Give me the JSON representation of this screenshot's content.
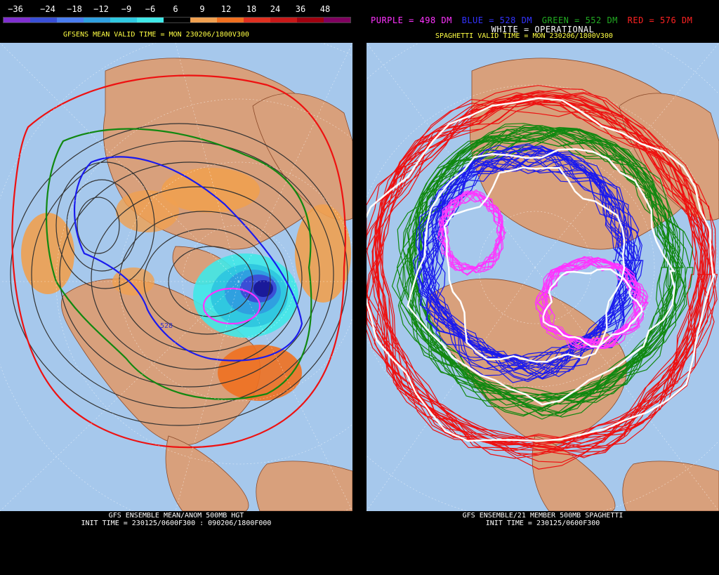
{
  "left": {
    "colorbar": {
      "labels": [
        "−36",
        "−24",
        "−18",
        "−12",
        "−9",
        "−6",
        "6",
        "9",
        "12",
        "18",
        "24",
        "36",
        "48"
      ],
      "colors": [
        "#7f2fd0",
        "#3a4fd6",
        "#4a7df0",
        "#2fa0e0",
        "#30c8e0",
        "#40e8e8",
        "#000000",
        "#f0a050",
        "#f07020",
        "#e03020",
        "#c81818",
        "#a00010",
        "#800060"
      ]
    },
    "subtitle": "GFSENS MEAN VALID TIME = MON 230206/1800V300",
    "contour_label": "528",
    "footer_line1": "GFS ENSEMBLE MEAN/ANOM 500MB HGT",
    "footer_line2": "INIT TIME = 230125/0600F300 : 090206/1800F000"
  },
  "right": {
    "legend": {
      "purple": "PURPLE = 498 DM",
      "blue": "BLUE = 528 DM",
      "green": "GREEN = 552 DM",
      "red": "RED = 576 DM",
      "white": "WHITE = OPERATIONAL"
    },
    "subtitle": "SPAGHETTI VALID TIME = MON 230206/1800V300",
    "footer_line1": "GFS ENSEMBLE/21 MEMBER 500MB SPAGHETTI",
    "footer_line2": "INIT TIME = 230125/0600F300"
  },
  "colors": {
    "ocean": "#a6c8ec",
    "land": "#d8a07c",
    "purple": "#ff33ff",
    "blue": "#1a1aee",
    "green": "#118811",
    "red": "#ee1111",
    "white": "#ffffff"
  }
}
